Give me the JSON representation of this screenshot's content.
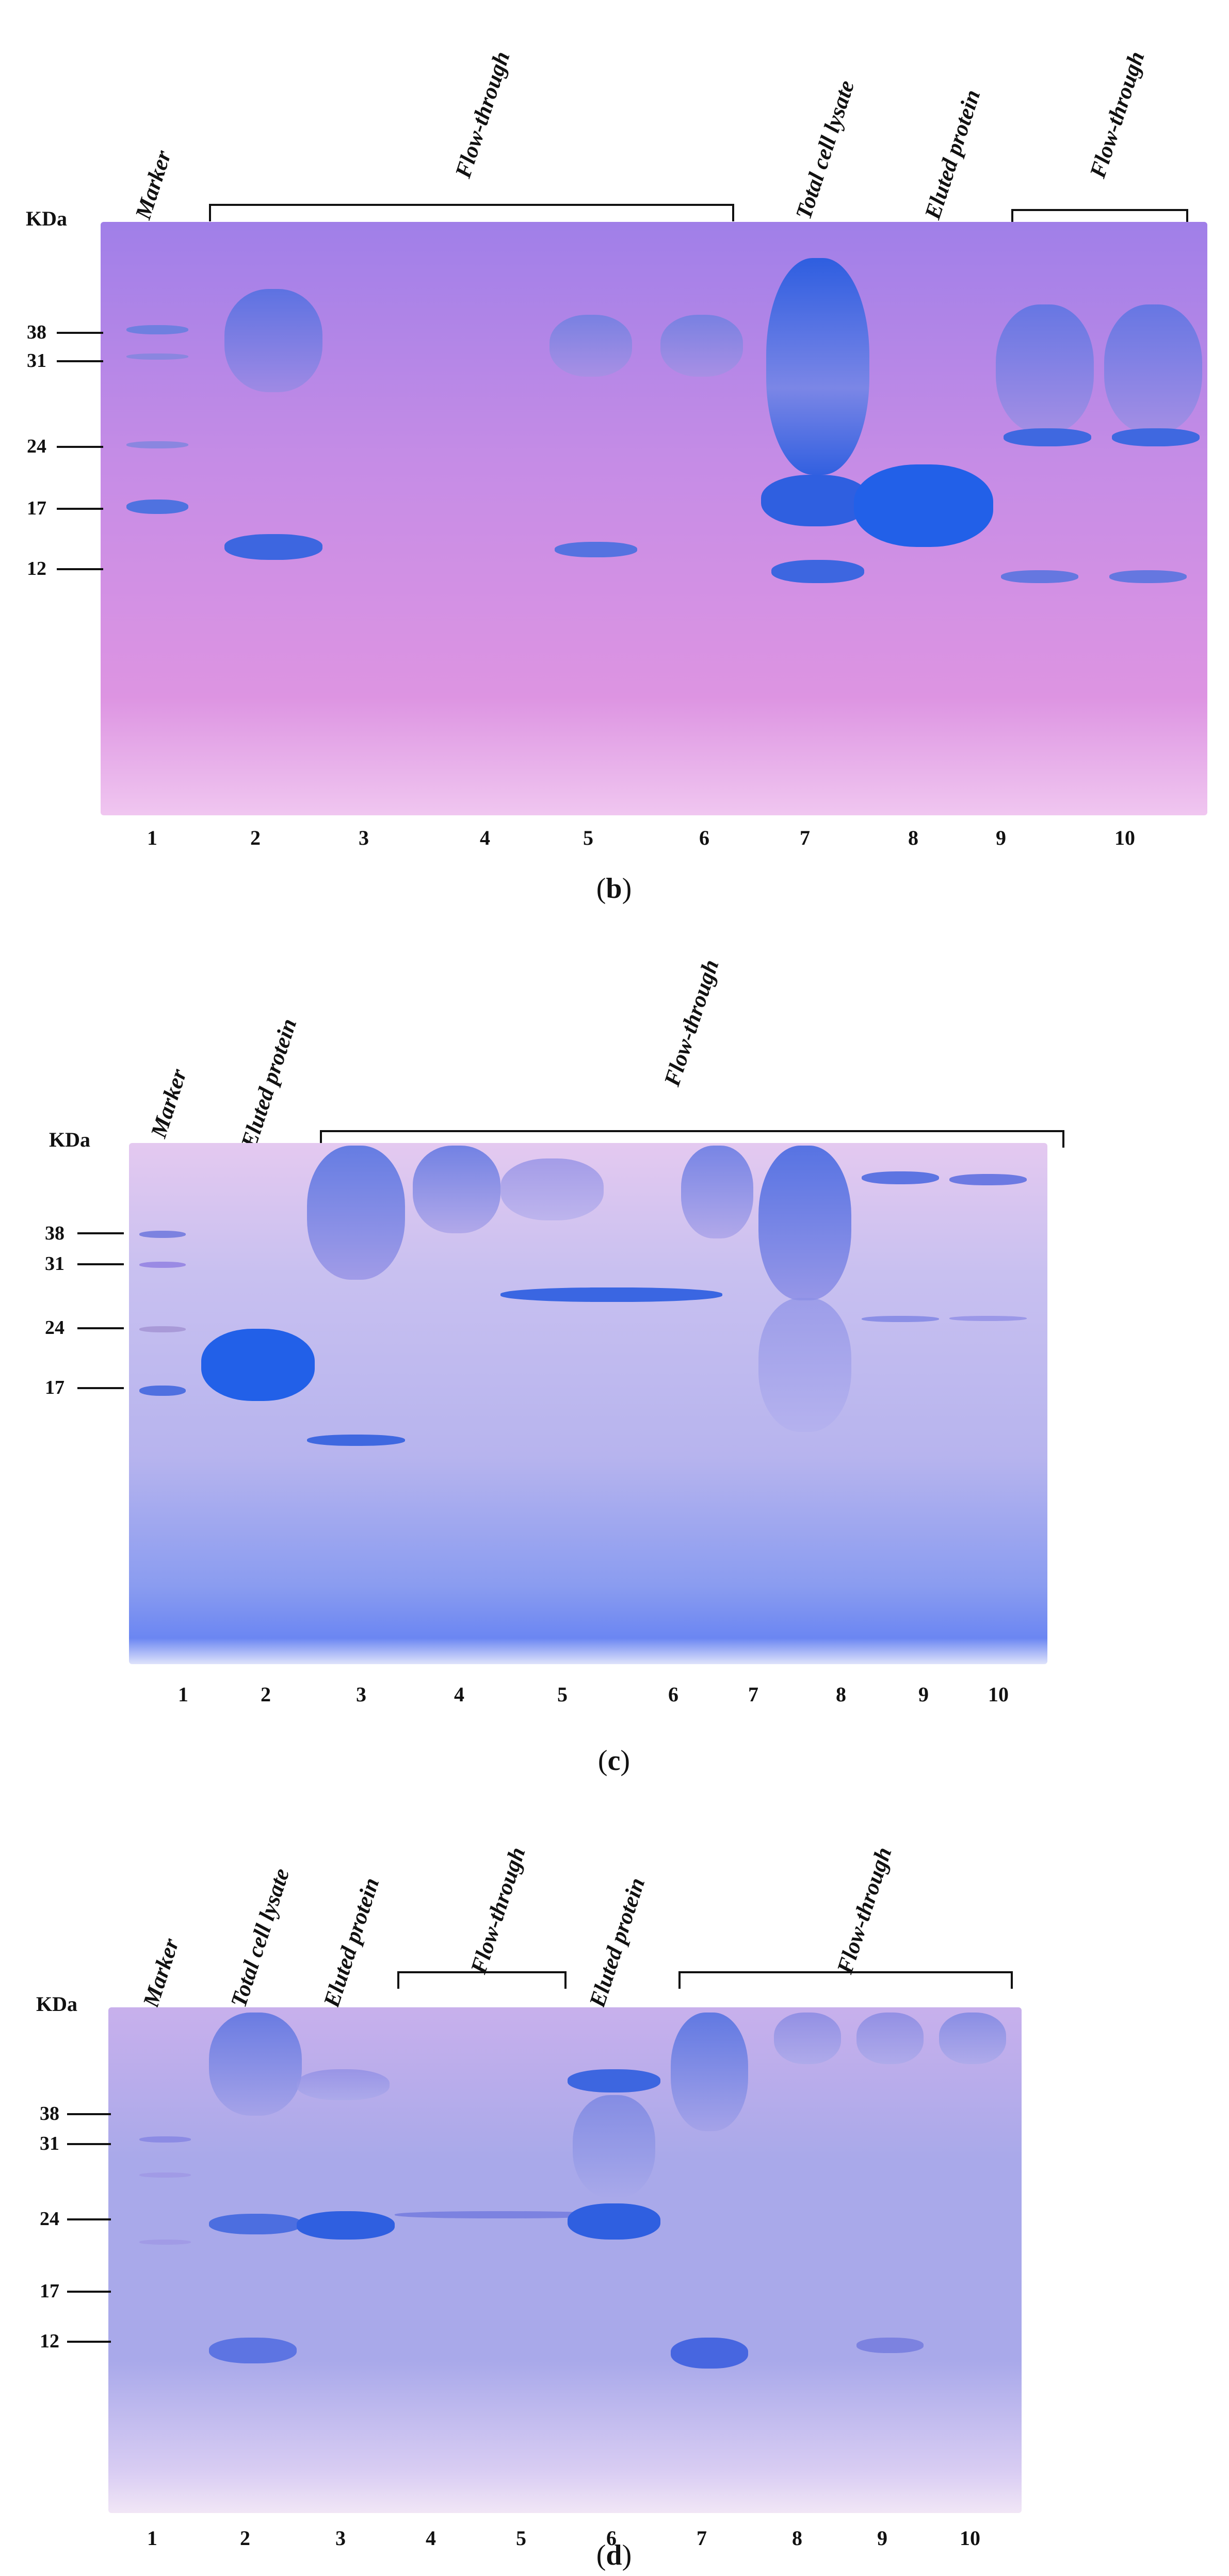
{
  "unit_label": "KDa",
  "panels": [
    {
      "id": "b",
      "caption_letter": "b",
      "column_labels": [
        "Marker",
        "Flow-through",
        "Total cell lysate",
        "Eluted protein",
        "Flow-through"
      ],
      "mw_markers": [
        "38",
        "31",
        "24",
        "17",
        "12"
      ],
      "lanes": [
        "1",
        "2",
        "3",
        "4",
        "5",
        "6",
        "7",
        "8",
        "9",
        "10"
      ]
    },
    {
      "id": "c",
      "caption_letter": "c",
      "column_labels": [
        "Marker",
        "Eluted protein",
        "Flow-through"
      ],
      "mw_markers": [
        "38",
        "31",
        "24",
        "17"
      ],
      "lanes": [
        "1",
        "2",
        "3",
        "4",
        "5",
        "6",
        "7",
        "8",
        "9",
        "10"
      ]
    },
    {
      "id": "d",
      "caption_letter": "d",
      "column_labels": [
        "Marker",
        "Total cell lysate",
        "Eluted protein",
        "Flow-through",
        "Eluted protein",
        "Flow-through"
      ],
      "mw_markers": [
        "38",
        "31",
        "24",
        "17",
        "12"
      ],
      "lanes": [
        "1",
        "2",
        "3",
        "4",
        "5",
        "6",
        "7",
        "8",
        "9",
        "10"
      ]
    }
  ],
  "colors": {
    "gel_b": "#c98ce0",
    "gel_c": "#b7b4ee",
    "gel_d": "#a9a9ea",
    "band": "#2f5fe0",
    "band_faint": "#6f7fe0"
  }
}
